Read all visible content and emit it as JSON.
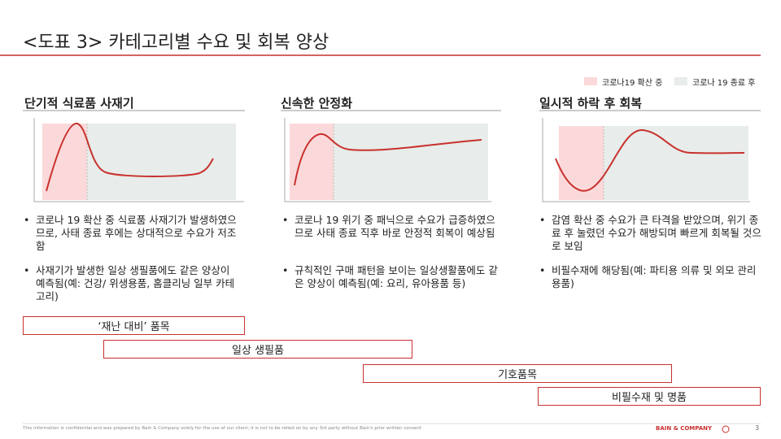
{
  "header": {
    "title": "<도표 3> 카테고리별 수요 및 회복 양상"
  },
  "legend": [
    {
      "label": "코로나19 확산 중"
    },
    {
      "label": "코로나 19 종료 후"
    }
  ],
  "panels": [
    {
      "title": "단기적 식료품 사재기",
      "bullets": [
        "코로나 19 확산 중 식료품 사재기가 발생하였으므로, 사태 종료 후에는 상대적으로 수요가 저조함",
        "사재기가 발생한 일상 생필품에도 같은 양상이 예측됨(예: 건강/ 위생용품, 홈클리닝 일부 카테고리)"
      ]
    },
    {
      "title": "신속한 안정화",
      "bullets": [
        "코로나 19 위기 중 패닉으로 수요가 급증하였으므로 사태 종료 직후 바로 안정적 회복이 예상됨",
        "규칙적인 구매 패턴을 보이는 일상생활품에도 같은 양상이 예측됨(예: 요리, 유아용품 등)"
      ]
    },
    {
      "title": "일시적 하락 후 회복",
      "bullets": [
        "감염 확산 중 수요가 큰 타격을 받았으며, 위기 종료 후 눌렸던 수요가 해방되며 빠르게 회복될 것으로 보임",
        "비필수재에 해당됨(예: 파티용 의류 및 외모 관리 용품)"
      ]
    }
  ],
  "bars": [
    {
      "label": "‘재난 대비’ 품목"
    },
    {
      "label": "일상 생필품"
    },
    {
      "label": "기호품목"
    },
    {
      "label": "비필수재 및 명품"
    }
  ],
  "footer": {
    "disclaimer": "This information is confidential and was prepared by Bain & Company solely for the use of our client; it is not to be relied on by any 3rd party without Bain's prior written consent",
    "brand": "BAIN & COMPANY",
    "page": "3"
  }
}
